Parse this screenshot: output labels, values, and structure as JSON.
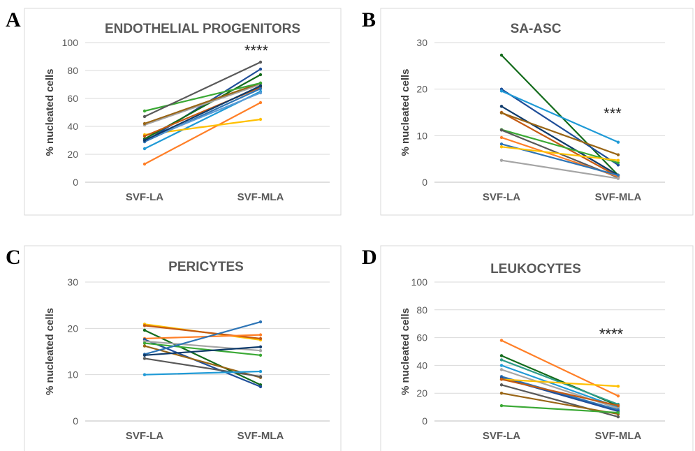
{
  "chart_data": [
    {
      "type": "line",
      "panel": "A",
      "title": "ENDOTHELIAL PROGENITORS",
      "ylabel": "% nucleated cells",
      "categories": [
        "SVF-LA",
        "SVF-MLA"
      ],
      "ylim": [
        0,
        100
      ],
      "yticks": [
        0,
        20,
        40,
        60,
        80,
        100
      ],
      "grid": true,
      "significance": "****",
      "series": [
        {
          "color": "#ff7f27",
          "values": [
            13,
            57
          ]
        },
        {
          "color": "#1f9ad6",
          "values": [
            24,
            65
          ]
        },
        {
          "color": "#ffc000",
          "values": [
            34,
            45
          ]
        },
        {
          "color": "#1f4e99",
          "values": [
            29,
            81
          ]
        },
        {
          "color": "#136b1b",
          "values": [
            31,
            77
          ]
        },
        {
          "color": "#c55a11",
          "values": [
            33,
            68
          ]
        },
        {
          "color": "#2e75b6",
          "values": [
            29,
            67
          ]
        },
        {
          "color": "#a5a5a5",
          "values": [
            41,
            70
          ]
        },
        {
          "color": "#5b9bd5",
          "values": [
            30,
            64
          ]
        },
        {
          "color": "#996515",
          "values": [
            42,
            71
          ]
        },
        {
          "color": "#3ba935",
          "values": [
            51,
            71
          ]
        },
        {
          "color": "#595959",
          "values": [
            47,
            86
          ]
        },
        {
          "color": "#0e3a6b",
          "values": [
            30,
            69
          ]
        }
      ]
    },
    {
      "type": "line",
      "panel": "B",
      "title": "SA-ASC",
      "ylabel": "% nucleated cells",
      "categories": [
        "SVF-LA",
        "SVF-MLA"
      ],
      "ylim": [
        0,
        30
      ],
      "yticks": [
        0,
        10,
        20,
        30
      ],
      "grid": true,
      "significance": "***",
      "series": [
        {
          "color": "#136b1b",
          "values": [
            27.3,
            1.5
          ]
        },
        {
          "color": "#1f4e99",
          "values": [
            20,
            3.7
          ]
        },
        {
          "color": "#1f9ad6",
          "values": [
            19.6,
            8.6
          ]
        },
        {
          "color": "#0e3a6b",
          "values": [
            16.3,
            1.5
          ]
        },
        {
          "color": "#c55a11",
          "values": [
            15,
            1.2
          ]
        },
        {
          "color": "#996515",
          "values": [
            14.9,
            5.9
          ]
        },
        {
          "color": "#3ba935",
          "values": [
            11.3,
            4.2
          ]
        },
        {
          "color": "#595959",
          "values": [
            11.2,
            1
          ]
        },
        {
          "color": "#ff7f27",
          "values": [
            9.6,
            1.2
          ]
        },
        {
          "color": "#2e75b6",
          "values": [
            8.2,
            1.5
          ]
        },
        {
          "color": "#ffc000",
          "values": [
            7.6,
            4.7
          ]
        },
        {
          "color": "#a5a5a5",
          "values": [
            4.7,
            0.8
          ]
        }
      ]
    },
    {
      "type": "line",
      "panel": "C",
      "title": "PERICYTES",
      "ylabel": "% nucleated cells",
      "categories": [
        "SVF-LA",
        "SVF-MLA"
      ],
      "ylim": [
        0,
        30
      ],
      "yticks": [
        0,
        10,
        20,
        30
      ],
      "grid": true,
      "significance": "",
      "series": [
        {
          "color": "#ffc000",
          "values": [
            20.9,
            17.5
          ]
        },
        {
          "color": "#c55a11",
          "values": [
            20.6,
            17.8
          ]
        },
        {
          "color": "#136b1b",
          "values": [
            19.6,
            7.8
          ]
        },
        {
          "color": "#ff7f27",
          "values": [
            17.8,
            18.6
          ]
        },
        {
          "color": "#1f4e99",
          "values": [
            17.6,
            7.4
          ]
        },
        {
          "color": "#a5a5a5",
          "values": [
            17.2,
            15.2
          ]
        },
        {
          "color": "#3ba935",
          "values": [
            16.8,
            14.2
          ]
        },
        {
          "color": "#996515",
          "values": [
            16.2,
            9.4
          ]
        },
        {
          "color": "#2e75b6",
          "values": [
            14.4,
            21.4
          ]
        },
        {
          "color": "#0e3a6b",
          "values": [
            14.2,
            16
          ]
        },
        {
          "color": "#595959",
          "values": [
            13.5,
            9.6
          ]
        },
        {
          "color": "#1f9ad6",
          "values": [
            10,
            10.7
          ]
        }
      ]
    },
    {
      "type": "line",
      "panel": "D",
      "title": "LEUKOCYTES",
      "ylabel": "% nucleated cells",
      "categories": [
        "SVF-LA",
        "SVF-MLA"
      ],
      "ylim": [
        0,
        100
      ],
      "yticks": [
        0,
        20,
        40,
        60,
        80,
        100
      ],
      "grid": true,
      "significance": "****",
      "series": [
        {
          "color": "#ff7f27",
          "values": [
            58,
            18
          ]
        },
        {
          "color": "#136b1b",
          "values": [
            47,
            11
          ]
        },
        {
          "color": "#2e9c8a",
          "values": [
            44,
            12
          ]
        },
        {
          "color": "#1f9ad6",
          "values": [
            40,
            10
          ]
        },
        {
          "color": "#a5a5a5",
          "values": [
            37,
            9
          ]
        },
        {
          "color": "#2e75b6",
          "values": [
            32,
            8
          ]
        },
        {
          "color": "#1f4e99",
          "values": [
            31,
            7
          ]
        },
        {
          "color": "#ffc000",
          "values": [
            30,
            25
          ]
        },
        {
          "color": "#c55a11",
          "values": [
            30,
            11
          ]
        },
        {
          "color": "#595959",
          "values": [
            26,
            3
          ]
        },
        {
          "color": "#996515",
          "values": [
            20,
            5
          ]
        },
        {
          "color": "#3ba935",
          "values": [
            11,
            6
          ]
        }
      ]
    }
  ]
}
